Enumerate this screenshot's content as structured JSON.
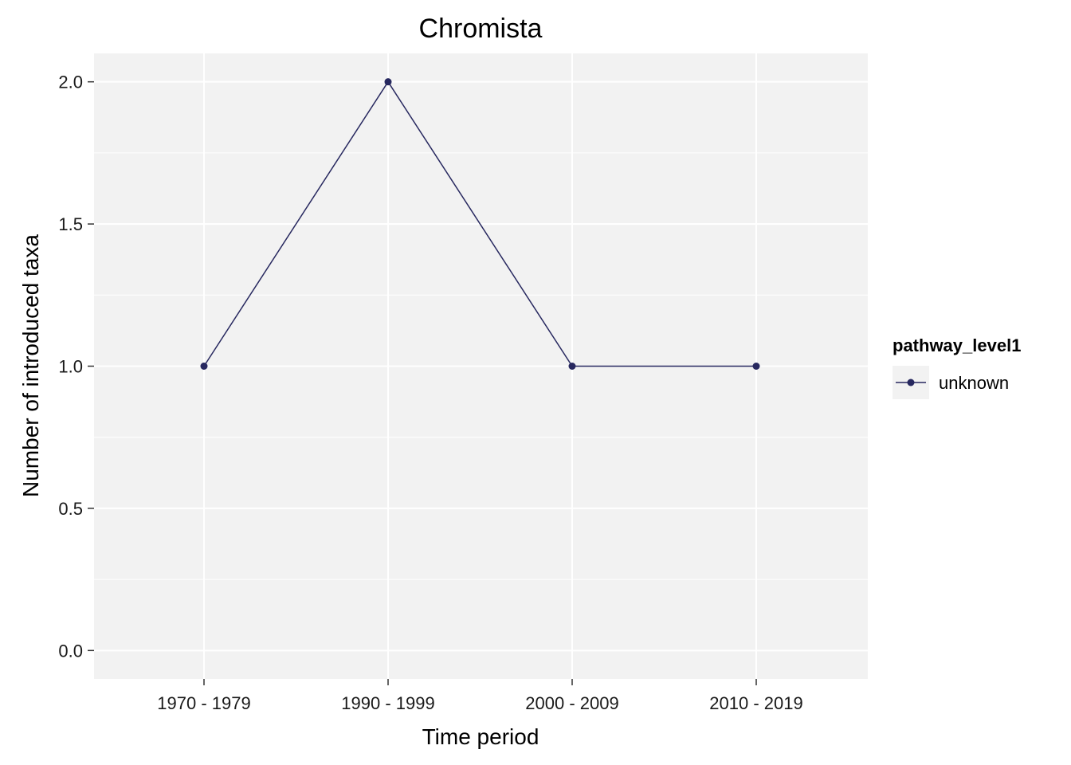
{
  "chart_data": {
    "type": "line",
    "title": "Chromista",
    "xlabel": "Time period",
    "ylabel": "Number of introduced taxa",
    "categories": [
      "1970 - 1979",
      "1990 - 1999",
      "2000 - 2009",
      "2010 - 2019"
    ],
    "series": [
      {
        "name": "unknown",
        "values": [
          1,
          2,
          1,
          1
        ],
        "color": "#27285f"
      }
    ],
    "ylim": [
      -0.1,
      2.1
    ],
    "yticks": [
      0.0,
      0.5,
      1.0,
      1.5,
      2.0
    ],
    "ytick_labels": [
      "0.0",
      "0.5",
      "1.0",
      "1.5",
      "2.0"
    ],
    "grid": true,
    "legend": {
      "title": "pathway_level1",
      "placement": "right"
    },
    "colors": {
      "panel": "#f2f2f2",
      "grid": "#ffffff",
      "series": "#27285f"
    }
  }
}
